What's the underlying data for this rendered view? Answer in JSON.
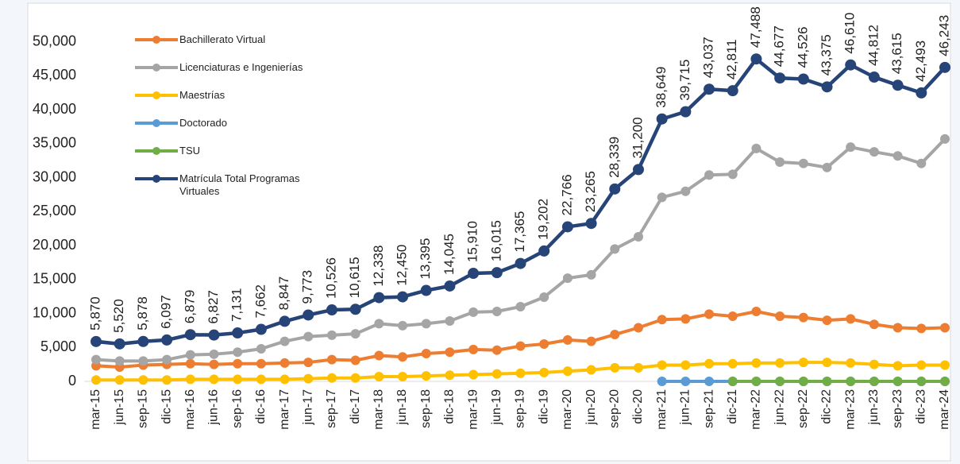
{
  "chart_data": {
    "type": "line",
    "categories": [
      "mar-15",
      "jun-15",
      "sep-15",
      "dic-15",
      "mar-16",
      "jun-16",
      "sep-16",
      "dic-16",
      "mar-17",
      "jun-17",
      "sep-17",
      "dic-17",
      "mar-18",
      "jun-18",
      "sep-18",
      "dic-18",
      "mar-19",
      "jun-19",
      "sep-19",
      "dic-19",
      "mar-20",
      "jun-20",
      "sep-20",
      "dic-20",
      "mar-21",
      "jun-21",
      "sep-21",
      "dic-21",
      "mar-22",
      "jun-22",
      "sep-22",
      "dic-22",
      "mar-23",
      "jun-23",
      "sep-23",
      "dic-23",
      "mar-24"
    ],
    "series": [
      {
        "name": "Bachillerato Virtual",
        "color": "#ED7D31",
        "values": [
          2300,
          2100,
          2400,
          2500,
          2600,
          2500,
          2600,
          2600,
          2700,
          2800,
          3200,
          3100,
          3800,
          3600,
          4100,
          4300,
          4700,
          4600,
          5200,
          5500,
          6100,
          5900,
          6900,
          7900,
          9100,
          9200,
          9900,
          9600,
          10300,
          9600,
          9400,
          9000,
          9200,
          8400,
          7900,
          7800,
          7900
        ]
      },
      {
        "name": "Licenciaturas e Ingenierías",
        "color": "#A5A5A5",
        "values": [
          3200,
          3000,
          3000,
          3200,
          3900,
          4000,
          4300,
          4800,
          5900,
          6600,
          6800,
          7000,
          8500,
          8200,
          8500,
          8900,
          10200,
          10300,
          11000,
          12400,
          15200,
          15700,
          19500,
          21300,
          27100,
          28000,
          30400,
          30500,
          34300,
          32300,
          32100,
          31500,
          34500,
          33800,
          33200,
          32100,
          35700
        ]
      },
      {
        "name": "Maestrías",
        "color": "#FFC000",
        "values": [
          200,
          200,
          200,
          200,
          300,
          300,
          300,
          300,
          300,
          400,
          500,
          500,
          700,
          700,
          800,
          900,
          1000,
          1100,
          1200,
          1300,
          1500,
          1700,
          2000,
          2000,
          2400,
          2400,
          2600,
          2600,
          2700,
          2700,
          2800,
          2800,
          2700,
          2500,
          2300,
          2400,
          2400
        ]
      },
      {
        "name": "Doctorado",
        "color": "#5B9BD5",
        "values": [
          null,
          null,
          null,
          null,
          null,
          null,
          null,
          null,
          null,
          null,
          null,
          null,
          null,
          null,
          null,
          null,
          null,
          null,
          null,
          null,
          null,
          null,
          null,
          null,
          0,
          0,
          0,
          0,
          0,
          0,
          0,
          0,
          0,
          0,
          0,
          0,
          0
        ]
      },
      {
        "name": "TSU",
        "color": "#70AD47",
        "values": [
          null,
          null,
          null,
          null,
          null,
          null,
          null,
          null,
          null,
          null,
          null,
          null,
          null,
          null,
          null,
          null,
          null,
          null,
          null,
          null,
          null,
          null,
          null,
          null,
          null,
          null,
          null,
          0,
          0,
          0,
          0,
          0,
          0,
          0,
          0,
          0,
          0
        ]
      },
      {
        "name": "Matrícula Total Programas Virtuales",
        "color": "#264478",
        "values": [
          5870,
          5520,
          5878,
          6097,
          6879,
          6827,
          7131,
          7662,
          8847,
          9773,
          10526,
          10615,
          12338,
          12450,
          13395,
          14045,
          15910,
          16015,
          17365,
          19202,
          22766,
          23265,
          28339,
          31200,
          38649,
          39715,
          43037,
          42811,
          47488,
          44677,
          44526,
          43375,
          46610,
          44812,
          43615,
          42493,
          46243
        ],
        "value_labels": [
          "5,870",
          "5,520",
          "5,878",
          "6,097",
          "6,879",
          "6,827",
          "7,131",
          "7,662",
          "8,847",
          "9,773",
          "10,526",
          "10,615",
          "12,338",
          "12,450",
          "13,395",
          "14,045",
          "15,910",
          "16,015",
          "17,365",
          "19,202",
          "22,766",
          "23,265",
          "28,339",
          "31,200",
          "38,649",
          "39,715",
          "43,037",
          "42,811",
          "47,488",
          "44,677",
          "44,526",
          "43,375",
          "46,610",
          "44,812",
          "43,615",
          "42,493",
          "46,243"
        ]
      }
    ],
    "ylim": [
      0,
      55000
    ],
    "yticks": [
      0,
      {
        "value": 5000,
        "label": "5,000"
      },
      {
        "value": 10000,
        "label": "10,000"
      },
      {
        "value": 15000,
        "label": "15,000"
      },
      {
        "value": 20000,
        "label": "20,000"
      },
      {
        "value": 25000,
        "label": "25,000"
      },
      {
        "value": 30000,
        "label": "30,000"
      },
      {
        "value": 35000,
        "label": "35,000"
      },
      {
        "value": 40000,
        "label": "40,000"
      },
      {
        "value": 45000,
        "label": "45,000"
      },
      {
        "value": 50000,
        "label": "50,000"
      }
    ],
    "legend": "upper left"
  }
}
